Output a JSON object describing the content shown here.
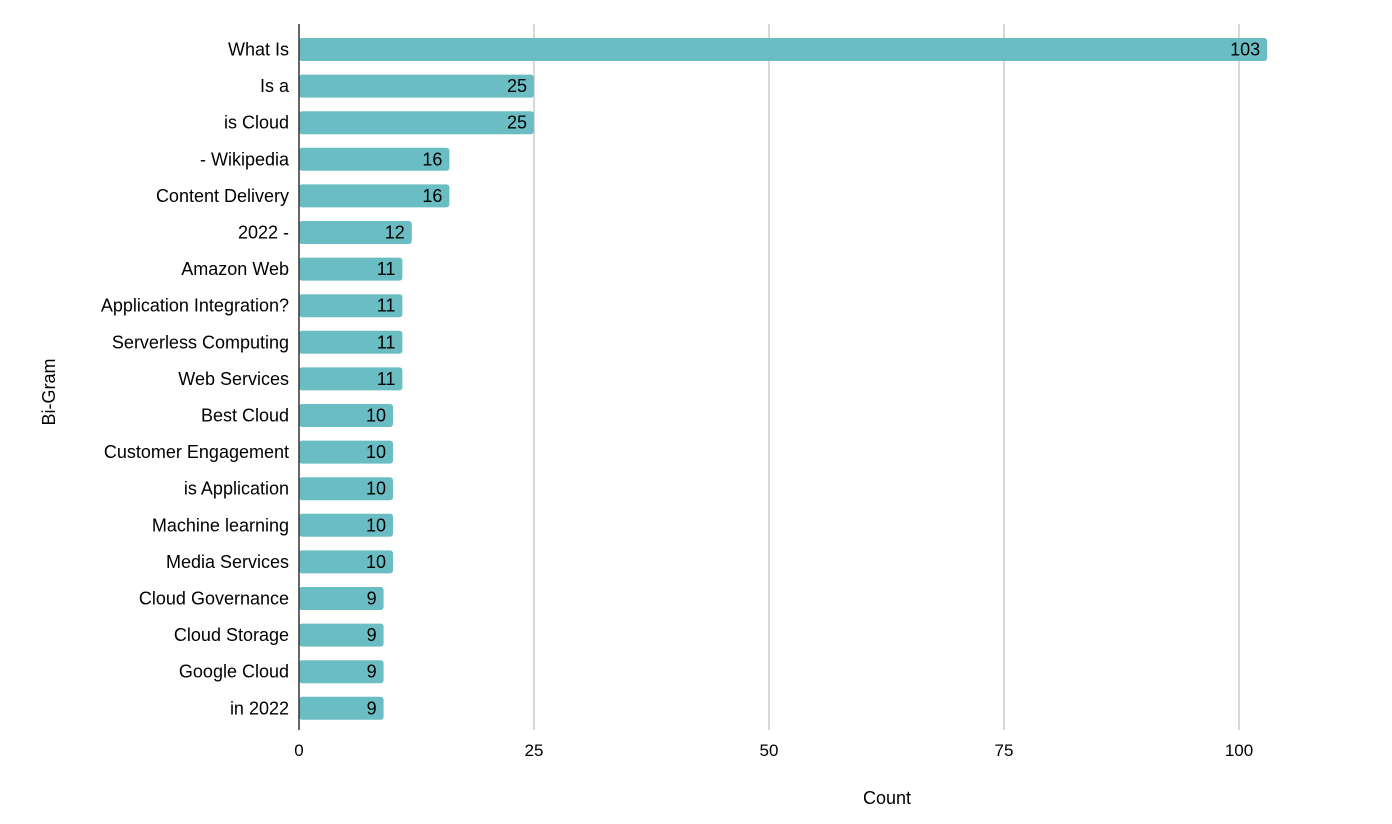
{
  "chart_data": {
    "type": "bar",
    "orientation": "horizontal",
    "categories": [
      "What Is",
      "Is a",
      "is Cloud",
      "- Wikipedia",
      "Content Delivery",
      "2022 -",
      "Amazon Web",
      "Application Integration?",
      "Serverless Computing",
      "Web Services",
      "Best Cloud",
      "Customer Engagement",
      "is Application",
      "Machine learning",
      "Media Services",
      "Cloud Governance",
      "Cloud Storage",
      "Google Cloud",
      "in 2022"
    ],
    "values": [
      103,
      25,
      25,
      16,
      16,
      12,
      11,
      11,
      11,
      11,
      10,
      10,
      10,
      10,
      10,
      9,
      9,
      9,
      9
    ],
    "xlabel": "Count",
    "ylabel": "Bi-Gram",
    "xlim": [
      0,
      110
    ],
    "xticks": [
      0,
      25,
      50,
      75,
      100
    ],
    "grid": "vertical",
    "legend": "none",
    "data_labels": "inside-end",
    "colors": {
      "bar": "#6bbdc4",
      "grid": "#cccccc",
      "axis": "#333333",
      "text": "#000000"
    }
  }
}
